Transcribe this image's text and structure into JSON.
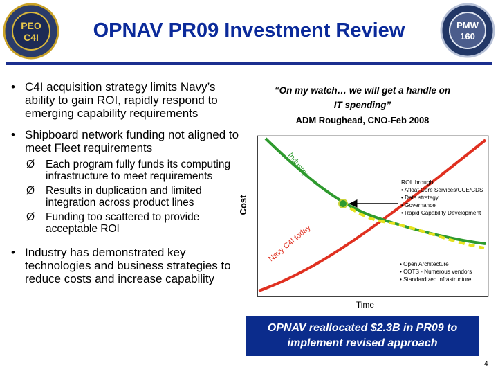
{
  "title": "OPNAV PR09 Investment Review",
  "logos": {
    "left": {
      "text": "PEO C4I",
      "line1": "PEO",
      "line2": "C4I"
    },
    "right": {
      "text": "PMW 160",
      "line1": "PMW",
      "line2": "160"
    }
  },
  "bullets": [
    {
      "text": "C4I acquisition strategy limits Navy’s ability to gain ROI, rapidly respond to emerging capability requirements"
    },
    {
      "text": "Shipboard network funding not aligned to meet Fleet requirements",
      "sub": [
        "Each program fully funds its computing infrastructure to meet requirements",
        "Results in duplication and limited integration across product lines",
        "Funding too scattered to provide acceptable ROI"
      ]
    },
    {
      "text": "Industry has demonstrated key technologies and business strategies to reduce costs and increase capability"
    }
  ],
  "quote": {
    "line1": "“On my watch… we will get a handle on",
    "line2": "IT spending”",
    "author": "ADM Roughead, CNO-Feb 2008"
  },
  "chart": {
    "y_axis_label": "Cost",
    "x_axis_label": "Time",
    "industry_label": "Industry",
    "navy_label": "Navy C4I today",
    "roi_title": "ROI through:",
    "roi_items": [
      "Afloat Core Services/CCE/CDS",
      "Data strategy",
      "Governance",
      "Rapid Capability Development"
    ],
    "lower_items": [
      "Open Architecture",
      "COTS - Numerous vendors",
      "Standardized infrastructure"
    ],
    "colors": {
      "industry": "#2e9a2e",
      "navy": "#e03020",
      "target": "#e6e21e"
    }
  },
  "banner": {
    "line1": "OPNAV reallocated $2.3B in PR09 to",
    "line2": "implement revised approach"
  },
  "page_number": "4"
}
